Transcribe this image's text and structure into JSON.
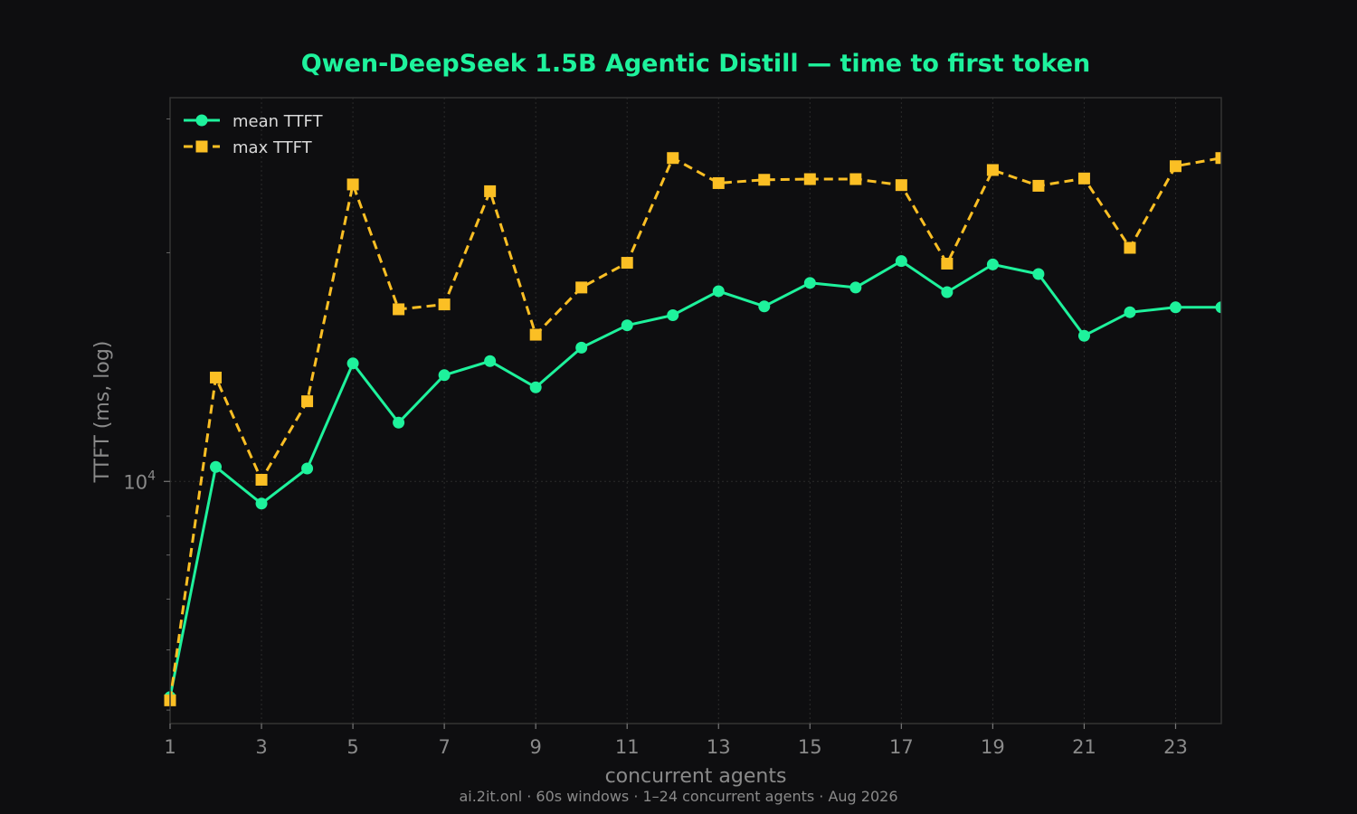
{
  "chart_data": {
    "type": "line",
    "title": "Qwen-DeepSeek 1.5B Agentic Distill — time to first token",
    "xlabel": "concurrent agents",
    "ylabel": "TTFT (ms, log)",
    "footer": "ai.2it.onl · 60s windows · 1–24 concurrent agents · Aug 2026",
    "y_scale": "log",
    "xlim": [
      1,
      24
    ],
    "ylim": [
      4800,
      32000
    ],
    "x_ticks": [
      1,
      3,
      5,
      7,
      9,
      11,
      13,
      15,
      17,
      19,
      21,
      23
    ],
    "y_major_tick": {
      "value": 10000,
      "base": "10",
      "exponent": "4"
    },
    "grid": true,
    "legend": "top-left",
    "x": [
      1,
      2,
      3,
      4,
      5,
      6,
      7,
      8,
      9,
      10,
      11,
      12,
      13,
      14,
      15,
      16,
      17,
      18,
      19,
      20,
      21,
      22,
      23,
      24
    ],
    "series": [
      {
        "name": "mean TTFT",
        "color": "#1ef29c",
        "marker": "circle",
        "line_style": "solid",
        "values": [
          5200,
          10450,
          9350,
          10400,
          14300,
          11950,
          13800,
          14400,
          13300,
          15000,
          16050,
          16550,
          17800,
          17000,
          18250,
          18000,
          19500,
          17750,
          19300,
          18750,
          15550,
          16700,
          16950,
          16950
        ]
      },
      {
        "name": "max TTFT",
        "color": "#fbbf24",
        "marker": "square",
        "line_style": "dashed",
        "values": [
          5150,
          13700,
          10050,
          12750,
          24600,
          16850,
          17100,
          24100,
          15600,
          18000,
          19400,
          26650,
          24700,
          24950,
          25000,
          25000,
          24550,
          19350,
          25700,
          24500,
          25050,
          20300,
          26000,
          26650
        ]
      }
    ]
  },
  "colors": {
    "background": "#0e0e10",
    "title": "#1ef29c",
    "frame": "#333333",
    "grid": "#2b2b2b",
    "text": "#8a8a8a"
  }
}
